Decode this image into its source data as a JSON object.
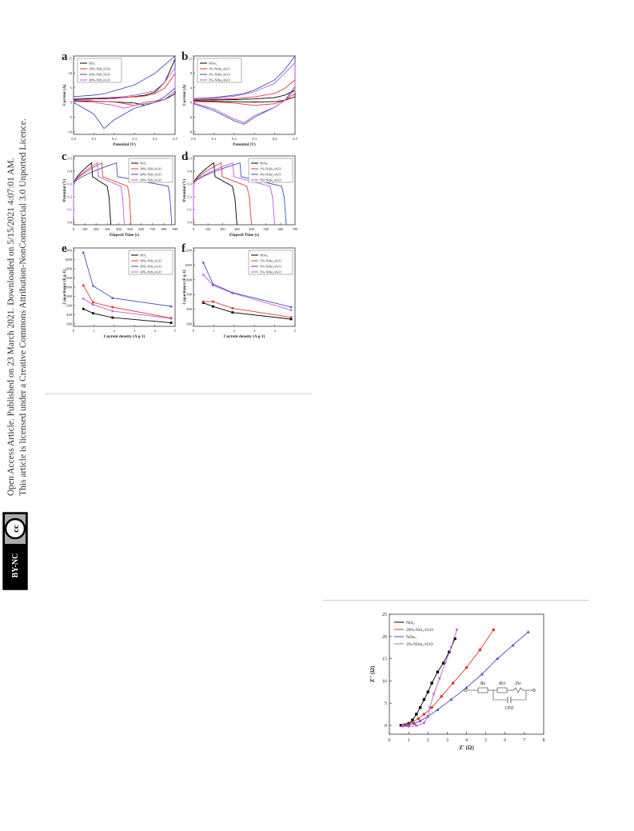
{
  "sidebar": {
    "line1": "Open Access Article. Published on 23 March 2021. Downloaded on 5/15/2021 4:07:01 AM.",
    "line2": "This article is licensed under a Creative Commons Attribution-NonCommercial 3.0 Unported Licence.",
    "badge": "BY-NC"
  },
  "figure1": {
    "panels": [
      {
        "letter": "a",
        "xlabel": "Potential (V)",
        "ylabel": "Current (A)",
        "xticks": [
          "0.0",
          "0.1",
          "0.2",
          "0.3",
          "0.4",
          "0.5"
        ],
        "yticks": [
          "15",
          "10",
          "5",
          "0",
          "-5",
          "-10"
        ],
        "legend": [
          "NiS₂",
          "10%-NiS₂/rGO",
          "20%-NiS₂/rGO",
          "30%-NiS₂/rGO"
        ],
        "colors": [
          "#000000",
          "#e53935",
          "#3f51b5",
          "#c158dc"
        ]
      },
      {
        "letter": "b",
        "xlabel": "Potential (V)",
        "ylabel": "Current (A)",
        "xticks": [
          "0.0",
          "0.1",
          "0.2",
          "0.3",
          "0.4",
          "0.5"
        ],
        "yticks": [
          "12",
          "8",
          "4",
          "0",
          "-4",
          "-8"
        ],
        "legend": [
          "NiSe₂",
          "1%-NiSe₂/rGO",
          "3%-NiSe₂/rGO",
          "5%-NiSe₂/rGO"
        ],
        "colors": [
          "#000000",
          "#e53935",
          "#3f51b5",
          "#c158dc"
        ]
      },
      {
        "letter": "c",
        "xlabel": "Elapsed Time (s)",
        "ylabel": "Potential (V)",
        "xticks": [
          "0",
          "100",
          "200",
          "300",
          "400",
          "500",
          "600",
          "700",
          "800",
          "900"
        ],
        "yticks": [
          "0.5",
          "0.4",
          "0.3",
          "0.2",
          "0.1",
          "0.0"
        ],
        "legend": [
          "NiS₂",
          "10%-NiS₂/rGO",
          "20%-NiS₂/rGO",
          "30%-NiS₂/rGO"
        ],
        "colors": [
          "#000000",
          "#e53935",
          "#3f51b5",
          "#c158dc"
        ]
      },
      {
        "letter": "d",
        "xlabel": "Elapsed Time (s)",
        "ylabel": "Potential (V)",
        "xticks": [
          "0",
          "100",
          "200",
          "300",
          "400",
          "500",
          "600",
          "700"
        ],
        "yticks": [
          "0.5",
          "0.4",
          "0.3",
          "0.2",
          "0.1",
          "0.0"
        ],
        "legend": [
          "NiSe₂",
          "1%-NiSe₂/rGO",
          "3%-NiSe₂/rGO",
          "5%-NiSe₂/rGO"
        ],
        "colors": [
          "#000000",
          "#e53935",
          "#3f51b5",
          "#c158dc"
        ]
      },
      {
        "letter": "e",
        "xlabel": "Current density (A g-1)",
        "ylabel": "Capacitance (F g-1)",
        "xticks": [
          "0",
          "1",
          "2",
          "3",
          "4",
          "5"
        ],
        "yticks": [
          "1800",
          "1600",
          "1400",
          "1200",
          "1000",
          "800",
          "600",
          "400",
          "200"
        ],
        "legend": [
          "NiS₂",
          "10%-NiS₂/rGO",
          "20%-NiS₂/rGO",
          "30%-NiS₂/rGO"
        ],
        "colors": [
          "#000000",
          "#e53935",
          "#3f51b5",
          "#c158dc"
        ]
      },
      {
        "letter": "f",
        "xlabel": "Current density (A g-1)",
        "ylabel": "Capacitance (F g-1)",
        "xticks": [
          "0",
          "1",
          "2",
          "3",
          "4",
          "5"
        ],
        "yticks": [
          "1200",
          "1000",
          "800",
          "600",
          "400",
          "200"
        ],
        "legend": [
          "NiSe₂",
          "1%-NiSe₂/rGO",
          "3%-NiSe₂/rGO",
          "5%-NiSe₂/rGO"
        ],
        "colors": [
          "#000000",
          "#e53935",
          "#3f51b5",
          "#c158dc"
        ]
      }
    ]
  },
  "figure2": {
    "xlabel": "Z' (Ω)",
    "ylabel": "Z'' (Ω)",
    "xticks": [
      "0",
      "1",
      "2",
      "3",
      "4",
      "5",
      "6",
      "7",
      "8"
    ],
    "yticks": [
      "25",
      "20",
      "15",
      "10",
      "5",
      "0"
    ],
    "legend": [
      "NiS₂",
      "20%-NiS₂/rGO",
      "NiSe₂",
      "3%-NiSe₂/rGO"
    ],
    "colors": [
      "#000000",
      "#e53935",
      "#3f51b5",
      "#c158dc"
    ],
    "circuit": {
      "re": "Re",
      "rct": "Rct",
      "zw": "Zw",
      "cpe": "CPE"
    }
  },
  "chart_data": [
    {
      "type": "line",
      "panel": "a",
      "xlabel": "Potential (V)",
      "ylabel": "Current (A)",
      "xlim": [
        0,
        0.5
      ],
      "ylim": [
        -12,
        15
      ],
      "series": [
        {
          "name": "NiS₂",
          "x": [
            0.0,
            0.1,
            0.2,
            0.3,
            0.35,
            0.4,
            0.45,
            0.5
          ],
          "anodic": [
            0,
            0.2,
            0.4,
            1,
            1.5,
            2.5,
            6,
            14
          ],
          "cathodic": [
            -0.5,
            -0.6,
            -0.8,
            -1.2,
            -2,
            -1,
            0,
            2
          ]
        },
        {
          "name": "10%-NiS₂/rGO",
          "x": [
            0.0,
            0.1,
            0.2,
            0.3,
            0.35,
            0.4,
            0.45,
            0.5
          ],
          "anodic": [
            0.3,
            0.4,
            0.6,
            0.9,
            1.2,
            2,
            4,
            9
          ],
          "cathodic": [
            -0.3,
            -0.5,
            -0.8,
            -2,
            -1,
            -0.5,
            0,
            3
          ]
        },
        {
          "name": "20%-NiS₂/rGO",
          "x": [
            0.0,
            0.1,
            0.15,
            0.2,
            0.3,
            0.4,
            0.45,
            0.5
          ],
          "anodic": [
            1,
            1.5,
            2,
            3,
            5,
            9,
            12,
            15
          ],
          "cathodic": [
            -1,
            -5,
            -10,
            -7,
            -3,
            -1,
            1,
            4
          ]
        },
        {
          "name": "30%-NiS₂/rGO",
          "x": [
            0.0,
            0.1,
            0.2,
            0.25,
            0.3,
            0.4,
            0.45,
            0.5
          ],
          "anodic": [
            0.4,
            0.5,
            0.8,
            1,
            1.5,
            3,
            6,
            11
          ],
          "cathodic": [
            -0.6,
            -1,
            -2,
            -3,
            -2,
            -1,
            0,
            3
          ]
        }
      ]
    },
    {
      "type": "line",
      "panel": "b",
      "xlabel": "Potential (V)",
      "ylabel": "Current (A)",
      "xlim": [
        0,
        0.5
      ],
      "ylim": [
        -10,
        13
      ],
      "series": [
        {
          "name": "NiSe₂",
          "x": [
            0.0,
            0.1,
            0.2,
            0.3,
            0.4,
            0.45,
            0.5
          ],
          "anodic": [
            0,
            0.1,
            0.2,
            0.4,
            0.8,
            1.5,
            3
          ],
          "cathodic": [
            -0.3,
            -0.3,
            -0.4,
            -0.5,
            -0.4,
            0,
            1
          ]
        },
        {
          "name": "1%-NiSe₂/rGO",
          "x": [
            0.0,
            0.1,
            0.2,
            0.3,
            0.4,
            0.45,
            0.5
          ],
          "anodic": [
            0.2,
            0.3,
            0.5,
            1,
            2,
            3.5,
            6
          ],
          "cathodic": [
            -0.4,
            -0.5,
            -0.8,
            -1.5,
            -1,
            0,
            2
          ]
        },
        {
          "name": "3%-NiSe₂/rGO",
          "x": [
            0.0,
            0.1,
            0.2,
            0.25,
            0.3,
            0.4,
            0.45,
            0.5
          ],
          "anodic": [
            0.5,
            0.8,
            1.5,
            2,
            3,
            6,
            9,
            13
          ],
          "cathodic": [
            -1,
            -3,
            -6,
            -7,
            -5,
            -2,
            0,
            4
          ]
        },
        {
          "name": "5%-NiSe₂/rGO",
          "x": [
            0.0,
            0.1,
            0.2,
            0.25,
            0.3,
            0.4,
            0.45,
            0.5
          ],
          "anodic": [
            0.4,
            0.6,
            1.2,
            1.8,
            2.5,
            5,
            8,
            11
          ],
          "cathodic": [
            -0.8,
            -2.5,
            -5.5,
            -6.5,
            -4.5,
            -2,
            0,
            3
          ]
        }
      ]
    },
    {
      "type": "line",
      "panel": "c",
      "xlabel": "Elapsed Time (s)",
      "ylabel": "Potential (V)",
      "xlim": [
        0,
        900
      ],
      "ylim": [
        0,
        0.5
      ],
      "series": [
        {
          "name": "NiS₂",
          "peak_time": 160,
          "end_time": 330
        },
        {
          "name": "10%-NiS₂/rGO",
          "peak_time": 250,
          "end_time": 510
        },
        {
          "name": "20%-NiS₂/rGO",
          "peak_time": 380,
          "end_time": 870
        },
        {
          "name": "30%-NiS₂/rGO",
          "peak_time": 210,
          "end_time": 450
        }
      ]
    },
    {
      "type": "line",
      "panel": "d",
      "xlabel": "Elapsed Time (s)",
      "ylabel": "Potential (V)",
      "xlim": [
        0,
        700
      ],
      "ylim": [
        0,
        0.5
      ],
      "series": [
        {
          "name": "NiSe₂",
          "peak_time": 140,
          "end_time": 300
        },
        {
          "name": "1%-NiSe₂/rGO",
          "peak_time": 190,
          "end_time": 400
        },
        {
          "name": "3%-NiSe₂/rGO",
          "peak_time": 320,
          "end_time": 640
        },
        {
          "name": "5%-NiSe₂/rGO",
          "peak_time": 270,
          "end_time": 560
        }
      ]
    },
    {
      "type": "line",
      "panel": "e",
      "xlabel": "Current density (A g-1)",
      "ylabel": "Capacitance (F g-1)",
      "x": [
        0.5,
        1,
        2,
        5
      ],
      "xlim": [
        0,
        5.2
      ],
      "ylim": [
        100,
        1900
      ],
      "series": [
        {
          "name": "NiS₂",
          "values": [
            500,
            400,
            300,
            180
          ]
        },
        {
          "name": "10%-NiS₂/rGO",
          "values": [
            1040,
            650,
            540,
            290
          ]
        },
        {
          "name": "20%-NiS₂/rGO",
          "values": [
            1800,
            1030,
            750,
            560
          ]
        },
        {
          "name": "30%-NiS₂/rGO",
          "values": [
            740,
            600,
            450,
            280
          ]
        }
      ]
    },
    {
      "type": "line",
      "panel": "f",
      "xlabel": "Current density (A g-1)",
      "ylabel": "Capacitance (F g-1)",
      "x": [
        0.5,
        1,
        2,
        5
      ],
      "xlim": [
        0,
        5.2
      ],
      "ylim": [
        0,
        1300
      ],
      "series": [
        {
          "name": "NiSe₂",
          "values": [
            390,
            330,
            230,
            120
          ]
        },
        {
          "name": "1%-NiSe₂/rGO",
          "values": [
            410,
            410,
            300,
            150
          ]
        },
        {
          "name": "3%-NiSe₂/rGO",
          "values": [
            1060,
            700,
            560,
            320
          ]
        },
        {
          "name": "5%-NiSe₂/rGO",
          "values": [
            860,
            680,
            550,
            270
          ]
        }
      ]
    },
    {
      "type": "scatter",
      "panel": "nyquist",
      "xlabel": "Z' (Ω)",
      "ylabel": "Z'' (Ω)",
      "xlim": [
        0,
        8
      ],
      "ylim": [
        -2,
        25
      ],
      "series": [
        {
          "name": "NiS₂",
          "x": [
            0.6,
            0.8,
            1.0,
            1.2,
            1.4,
            1.6,
            1.8,
            2.0,
            2.2,
            2.5,
            2.8,
            3.1,
            3.4
          ],
          "y": [
            0,
            0.1,
            0.4,
            1.2,
            2.5,
            4.0,
            5.8,
            7.5,
            9.5,
            12,
            14,
            16.5,
            19.5
          ]
        },
        {
          "name": "20%-NiS₂/rGO",
          "x": [
            0.7,
            0.9,
            1.2,
            1.5,
            1.8,
            2.2,
            2.7,
            3.3,
            4.0,
            4.7,
            5.4
          ],
          "y": [
            0,
            0.2,
            0.7,
            1.5,
            2.5,
            4.0,
            6.5,
            9.5,
            13,
            17,
            21.5
          ]
        },
        {
          "name": "NiSe₂",
          "x": [
            0.8,
            1.0,
            1.3,
            1.6,
            2.0,
            2.5,
            3.2,
            4.0,
            4.8,
            5.6,
            6.4,
            7.2
          ],
          "y": [
            0,
            0.1,
            0.4,
            1.0,
            2.0,
            3.5,
            5.8,
            8.5,
            11.5,
            15,
            18,
            21
          ]
        },
        {
          "name": "3%-NiSe₂/rGO",
          "x": [
            0.7,
            1.0,
            1.4,
            1.8,
            2.0,
            2.1,
            2.3,
            2.6,
            2.9,
            3.2,
            3.5
          ],
          "y": [
            -0.2,
            -0.3,
            -0.1,
            0.5,
            2,
            4,
            7,
            10.5,
            14,
            17.5,
            21.5
          ]
        }
      ]
    }
  ]
}
